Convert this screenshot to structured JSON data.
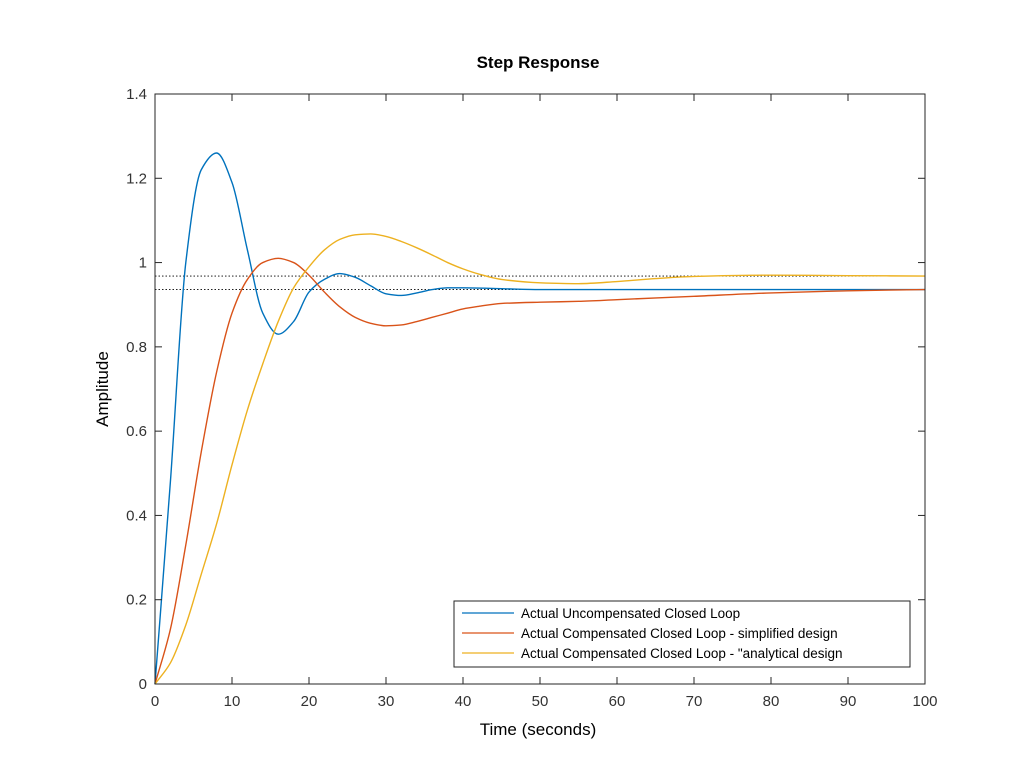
{
  "chart_data": {
    "type": "line",
    "title": "Step Response",
    "xlabel": "Time (seconds)",
    "ylabel": "Amplitude",
    "xlim": [
      0,
      100
    ],
    "ylim": [
      0,
      1.4
    ],
    "xticks": [
      "0",
      "10",
      "20",
      "30",
      "40",
      "50",
      "60",
      "70",
      "80",
      "90",
      "100"
    ],
    "yticks": [
      "0",
      "0.2",
      "0.4",
      "0.6",
      "0.8",
      "1",
      "1.2",
      "1.4"
    ],
    "grid": false,
    "legend_position": "bottom-right",
    "reference_lines": [
      {
        "name": "steady-state-uncompensated",
        "y": 0.936,
        "style": "dotted"
      },
      {
        "name": "steady-state-compensated",
        "y": 0.968,
        "style": "dotted"
      }
    ],
    "series": [
      {
        "name": "Actual Uncompensated Closed Loop",
        "color": "#0072BD",
        "x": [
          0,
          2,
          4,
          6,
          8,
          10,
          12,
          14,
          16,
          18,
          20,
          22,
          24,
          26,
          28,
          30,
          32,
          34,
          36,
          38,
          40,
          45,
          50,
          60,
          70,
          80,
          90,
          100
        ],
        "y": [
          0,
          0.48,
          1.0,
          1.22,
          1.26,
          1.19,
          1.03,
          0.88,
          0.83,
          0.86,
          0.93,
          0.96,
          0.974,
          0.965,
          0.945,
          0.926,
          0.922,
          0.928,
          0.936,
          0.94,
          0.94,
          0.938,
          0.936,
          0.936,
          0.936,
          0.936,
          0.936,
          0.936
        ]
      },
      {
        "name": "Actual Compensated Closed Loop - simplified design",
        "color": "#D95319",
        "x": [
          0,
          2,
          4,
          6,
          8,
          10,
          12,
          14,
          16,
          18,
          20,
          22,
          24,
          26,
          28,
          30,
          32,
          34,
          36,
          38,
          40,
          42,
          45,
          50,
          55,
          60,
          70,
          80,
          90,
          100
        ],
        "y": [
          0,
          0.13,
          0.33,
          0.55,
          0.74,
          0.88,
          0.96,
          1.0,
          1.01,
          1.0,
          0.97,
          0.93,
          0.895,
          0.87,
          0.856,
          0.85,
          0.852,
          0.86,
          0.87,
          0.88,
          0.89,
          0.896,
          0.903,
          0.906,
          0.908,
          0.912,
          0.92,
          0.928,
          0.933,
          0.936
        ]
      },
      {
        "name": "Actual Compensated Closed Loop - \"analytical design",
        "color": "#EDB120",
        "x": [
          0,
          2,
          4,
          6,
          8,
          10,
          12,
          14,
          16,
          18,
          20,
          22,
          24,
          26,
          28,
          30,
          32,
          34,
          36,
          38,
          40,
          42,
          45,
          50,
          55,
          60,
          65,
          70,
          80,
          90,
          100
        ],
        "y": [
          0,
          0.05,
          0.14,
          0.26,
          0.38,
          0.52,
          0.65,
          0.76,
          0.86,
          0.94,
          0.99,
          1.03,
          1.055,
          1.066,
          1.068,
          1.062,
          1.05,
          1.035,
          1.018,
          1.0,
          0.985,
          0.973,
          0.96,
          0.952,
          0.95,
          0.955,
          0.962,
          0.967,
          0.97,
          0.969,
          0.968
        ]
      }
    ]
  }
}
